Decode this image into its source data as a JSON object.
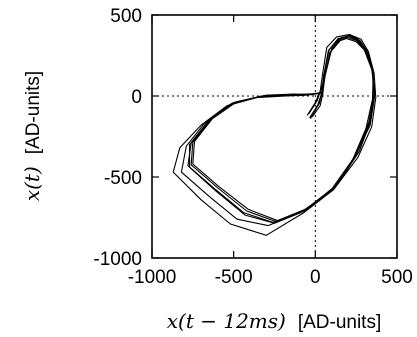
{
  "chart_data": {
    "type": "line",
    "title": "",
    "xlabel_math": "x(t − 12ms)",
    "xlabel_unit": "[AD-units]",
    "ylabel_math": "x(t)",
    "ylabel_unit": "[AD-units]",
    "xlim": [
      -1000,
      500
    ],
    "ylim": [
      -1000,
      500
    ],
    "x_ticks": [
      -1000,
      -500,
      0,
      500
    ],
    "y_ticks": [
      -1000,
      -500,
      0,
      500
    ],
    "x_tick_labels": [
      "-1000",
      "-500",
      "0",
      "500"
    ],
    "y_tick_labels": [
      "-1000",
      "-500",
      "0",
      "500"
    ],
    "reference_lines": {
      "x": 0,
      "y": 0,
      "style": "dotted"
    },
    "grid": false,
    "series": [
      {
        "name": "",
        "loops": [
          [
            [
              -30,
              -140
            ],
            [
              20,
              -50
            ],
            [
              40,
              20
            ],
            [
              50,
              120
            ],
            [
              80,
              280
            ],
            [
              140,
              355
            ],
            [
              200,
              370
            ],
            [
              260,
              345
            ],
            [
              310,
              280
            ],
            [
              350,
              160
            ],
            [
              360,
              0
            ],
            [
              330,
              -170
            ],
            [
              250,
              -360
            ],
            [
              120,
              -560
            ],
            [
              -60,
              -700
            ],
            [
              -260,
              -780
            ],
            [
              -440,
              -720
            ],
            [
              -620,
              -570
            ],
            [
              -780,
              -430
            ],
            [
              -760,
              -290
            ],
            [
              -650,
              -150
            ],
            [
              -500,
              -40
            ],
            [
              -320,
              0
            ],
            [
              -150,
              10
            ],
            [
              -30,
              10
            ],
            [
              40,
              20
            ]
          ],
          [
            [
              -50,
              -120
            ],
            [
              0,
              -40
            ],
            [
              30,
              30
            ],
            [
              45,
              140
            ],
            [
              70,
              300
            ],
            [
              130,
              365
            ],
            [
              210,
              380
            ],
            [
              275,
              340
            ],
            [
              320,
              270
            ],
            [
              355,
              150
            ],
            [
              350,
              -20
            ],
            [
              310,
              -200
            ],
            [
              230,
              -390
            ],
            [
              90,
              -590
            ],
            [
              -90,
              -720
            ],
            [
              -290,
              -800
            ],
            [
              -480,
              -760
            ],
            [
              -650,
              -620
            ],
            [
              -820,
              -470
            ],
            [
              -790,
              -310
            ],
            [
              -680,
              -170
            ],
            [
              -520,
              -50
            ],
            [
              -340,
              -5
            ],
            [
              -170,
              5
            ],
            [
              -50,
              12
            ],
            [
              30,
              15
            ]
          ],
          [
            [
              -40,
              -110
            ],
            [
              10,
              -30
            ],
            [
              35,
              40
            ],
            [
              55,
              110
            ],
            [
              90,
              270
            ],
            [
              150,
              340
            ],
            [
              190,
              355
            ],
            [
              250,
              335
            ],
            [
              300,
              285
            ],
            [
              345,
              165
            ],
            [
              365,
              20
            ],
            [
              340,
              -150
            ],
            [
              270,
              -340
            ],
            [
              140,
              -540
            ],
            [
              -40,
              -690
            ],
            [
              -230,
              -770
            ],
            [
              -410,
              -700
            ],
            [
              -590,
              -560
            ],
            [
              -750,
              -420
            ],
            [
              -740,
              -280
            ],
            [
              -630,
              -140
            ],
            [
              -480,
              -35
            ],
            [
              -300,
              5
            ],
            [
              -130,
              12
            ],
            [
              -20,
              8
            ],
            [
              50,
              25
            ]
          ],
          [
            [
              -20,
              -130
            ],
            [
              30,
              -60
            ],
            [
              45,
              10
            ],
            [
              60,
              130
            ],
            [
              100,
              290
            ],
            [
              160,
              360
            ],
            [
              220,
              375
            ],
            [
              280,
              350
            ],
            [
              325,
              275
            ],
            [
              360,
              140
            ],
            [
              370,
              -10
            ],
            [
              345,
              -190
            ],
            [
              260,
              -380
            ],
            [
              110,
              -580
            ],
            [
              -70,
              -720
            ],
            [
              -300,
              -860
            ],
            [
              -520,
              -790
            ],
            [
              -700,
              -640
            ],
            [
              -870,
              -470
            ],
            [
              -830,
              -320
            ],
            [
              -700,
              -180
            ],
            [
              -540,
              -60
            ],
            [
              -360,
              -10
            ],
            [
              -180,
              0
            ],
            [
              -60,
              5
            ],
            [
              35,
              18
            ]
          ],
          [
            [
              -35,
              -135
            ],
            [
              15,
              -55
            ],
            [
              38,
              15
            ],
            [
              52,
              125
            ],
            [
              85,
              285
            ],
            [
              145,
              350
            ],
            [
              205,
              372
            ],
            [
              265,
              348
            ],
            [
              315,
              282
            ],
            [
              352,
              158
            ],
            [
              362,
              -5
            ],
            [
              335,
              -180
            ],
            [
              245,
              -370
            ],
            [
              115,
              -570
            ],
            [
              -55,
              -705
            ],
            [
              -250,
              -785
            ],
            [
              -430,
              -735
            ],
            [
              -610,
              -585
            ],
            [
              -770,
              -440
            ],
            [
              -770,
              -300
            ],
            [
              -660,
              -160
            ],
            [
              -510,
              -45
            ],
            [
              -330,
              0
            ],
            [
              -160,
              8
            ],
            [
              -40,
              10
            ],
            [
              42,
              22
            ]
          ],
          [
            [
              -25,
              -125
            ],
            [
              25,
              -45
            ],
            [
              42,
              25
            ],
            [
              58,
              115
            ],
            [
              95,
              275
            ],
            [
              155,
              345
            ],
            [
              195,
              362
            ],
            [
              255,
              342
            ],
            [
              305,
              278
            ],
            [
              348,
              162
            ],
            [
              358,
              10
            ],
            [
              328,
              -160
            ],
            [
              255,
              -350
            ],
            [
              130,
              -550
            ],
            [
              -50,
              -695
            ],
            [
              -240,
              -775
            ],
            [
              -420,
              -710
            ],
            [
              -600,
              -565
            ],
            [
              -760,
              -425
            ],
            [
              -750,
              -285
            ],
            [
              -640,
              -145
            ],
            [
              -490,
              -38
            ],
            [
              -310,
              3
            ],
            [
              -140,
              10
            ],
            [
              -25,
              9
            ],
            [
              45,
              20
            ]
          ]
        ]
      }
    ]
  }
}
